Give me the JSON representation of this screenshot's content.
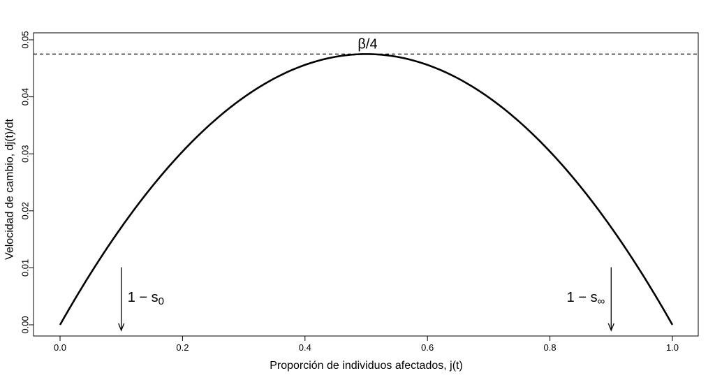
{
  "chart_data": {
    "type": "line",
    "title": "",
    "xlabel": "Proporción de individuos afectados, j(t)",
    "ylabel": "Velocidad de cambio, dj(t)/dt",
    "xlim": [
      0.0,
      1.0
    ],
    "ylim": [
      0.0,
      0.05
    ],
    "x_ticks": [
      "0.0",
      "0.2",
      "0.4",
      "0.6",
      "0.8",
      "1.0"
    ],
    "y_ticks": [
      "0.00",
      "0.01",
      "0.02",
      "0.03",
      "0.04",
      "0.05"
    ],
    "grid": false,
    "series": [
      {
        "function": "y = beta * x * (1 - x)",
        "beta": 0.19,
        "x_range": [
          0.0,
          1.0
        ],
        "color": "#000000",
        "line_style": "solid"
      }
    ],
    "reference_lines": [
      {
        "orientation": "horizontal",
        "y": 0.0475,
        "style": "dashed",
        "color": "#000000"
      }
    ],
    "annotations": [
      {
        "id": "beta-quarter",
        "text": "β/4",
        "x": 0.5,
        "y": 0.0475
      },
      {
        "id": "one-minus-s0",
        "text": "1 − s",
        "sub": "0",
        "x": 0.1,
        "arrow_from_y": 0.0101,
        "arrow_to_y": 0.0
      },
      {
        "id": "one-minus-sinf",
        "text": "1 − s",
        "sub": "∞",
        "x": 0.9,
        "arrow_from_y": 0.0101,
        "arrow_to_y": 0.0
      }
    ]
  }
}
